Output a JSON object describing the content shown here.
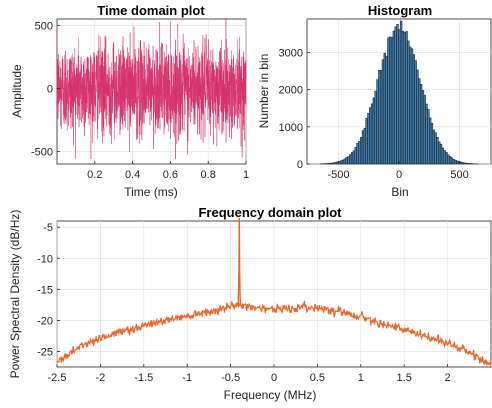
{
  "chart_data": [
    {
      "type": "line",
      "title": "Time domain plot",
      "xlabel": "Time (ms)",
      "ylabel": "Amplitude",
      "xlim": [
        0,
        1
      ],
      "ylim": [
        -600,
        550
      ],
      "xticks": [
        0.2,
        0.4,
        0.6,
        0.8,
        1
      ],
      "xticklabels": [
        "0.2",
        "0.4",
        "0.6",
        "0.8",
        "1"
      ],
      "yticks": [
        -500,
        0,
        500
      ],
      "yticklabels": [
        "-500",
        "0",
        "500"
      ],
      "noise_std": 175,
      "noise_peak": 560,
      "samples": 2000,
      "color": "#d6336c",
      "grid": true
    },
    {
      "type": "bar",
      "title": "Histogram",
      "xlabel": "Bin",
      "ylabel": "Number in bin",
      "xlim": [
        -760,
        760
      ],
      "ylim": [
        0,
        3900
      ],
      "xticks": [
        -500,
        0,
        500
      ],
      "xticklabels": [
        "-500",
        "0",
        "500"
      ],
      "yticks": [
        0,
        1000,
        2000,
        3000
      ],
      "yticklabels": [
        "0",
        "1000",
        "2000",
        "3000"
      ],
      "distribution_mean": 0,
      "distribution_std": 175,
      "peak_count": 3700,
      "bin_width": 15,
      "bin_range": [
        -650,
        650
      ],
      "color": "#3d7fb0",
      "edge_color": "#1a1a1a",
      "grid": true
    },
    {
      "type": "line",
      "title": "Frequency domain plot",
      "xlabel": "Frequency (MHz)",
      "ylabel": "Power Spectral Density (dB/Hz)",
      "xlim": [
        -2.5,
        2.5
      ],
      "ylim": [
        -27.5,
        -4
      ],
      "xticks": [
        -2.5,
        -2,
        -1.5,
        -1,
        -0.5,
        0,
        0.5,
        1,
        1.5,
        2
      ],
      "xticklabels": [
        "-2.5",
        "-2",
        "-1.5",
        "-1",
        "-0.5",
        "0",
        "0.5",
        "1",
        "1.5",
        "2"
      ],
      "yticks": [
        -25,
        -20,
        -15,
        -10,
        -5
      ],
      "yticklabels": [
        "-25",
        "-20",
        "-15",
        "-10",
        "-5"
      ],
      "x": [
        -2.5,
        -2.25,
        -2.0,
        -1.75,
        -1.5,
        -1.25,
        -1.0,
        -0.75,
        -0.5,
        -0.45,
        -0.4,
        -0.35,
        -0.25,
        0.0,
        0.25,
        0.5,
        0.75,
        1.0,
        1.25,
        1.5,
        1.75,
        2.0,
        2.25,
        2.5
      ],
      "y": [
        -26.8,
        -24.2,
        -22.8,
        -21.8,
        -20.8,
        -20.0,
        -19.2,
        -18.5,
        -17.8,
        -17.6,
        -3.5,
        -17.6,
        -17.8,
        -18.2,
        -18.0,
        -17.9,
        -18.5,
        -19.4,
        -20.4,
        -21.6,
        -22.6,
        -23.6,
        -25.2,
        -27.2
      ],
      "peak_frequency": -0.4,
      "peak_level": -3.5,
      "color": "#e8672a",
      "grid": true
    }
  ]
}
